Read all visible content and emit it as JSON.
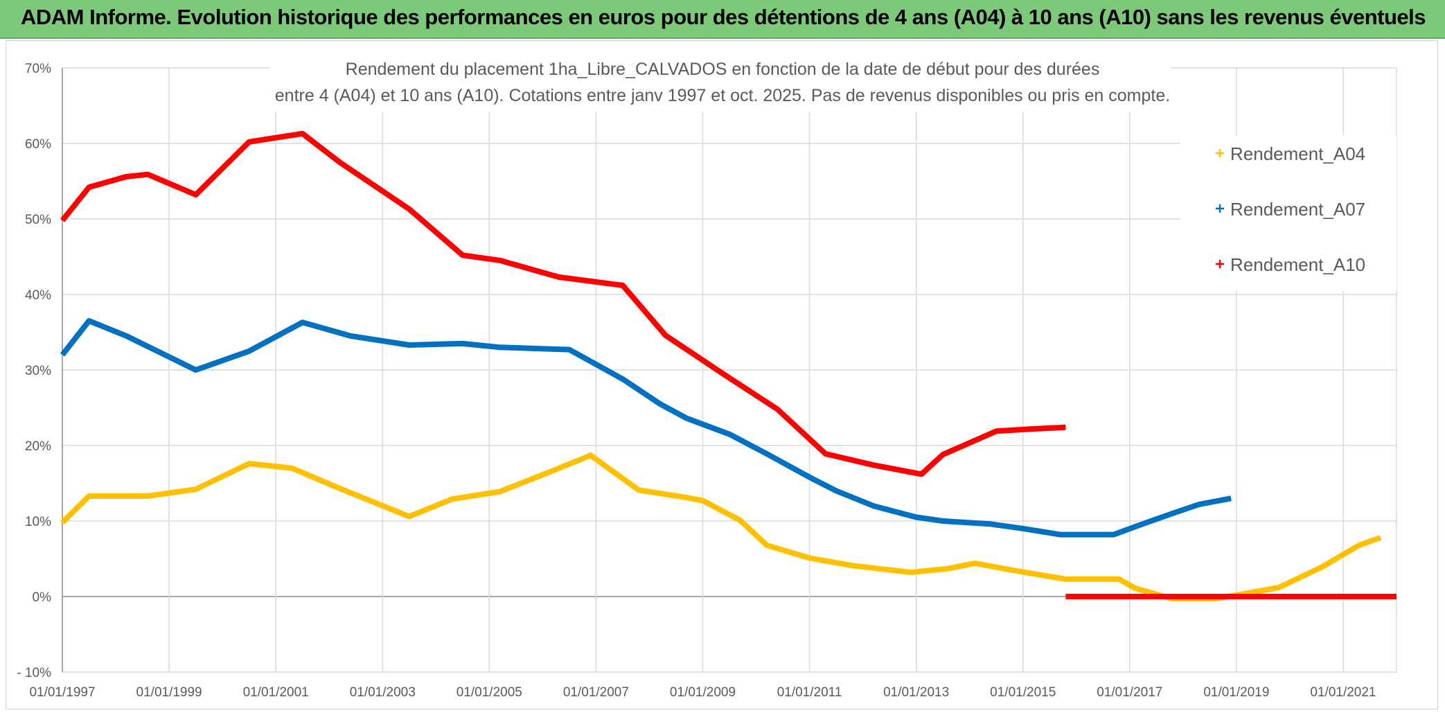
{
  "header": {
    "title": "ADAM Informe. Evolution historique des performances en euros pour des détentions de 4 ans (A04) à 10 ans (A10) sans les revenus éventuels"
  },
  "colors": {
    "header_bg": "#7dc97a",
    "A04": "#ffc000",
    "A07": "#0070c0",
    "A10": "#ff0000",
    "grid": "#d9d9d9",
    "zero_line": "#a6a6a6",
    "text": "#595959"
  },
  "chart_data": {
    "type": "line",
    "title_lines": [
      "Rendement du placement 1ha_Libre_CALVADOS en fonction de la date de début pour des durées",
      "entre 4 (A04) et 10 ans (A10). Cotations entre janv 1997 et oct. 2025. Pas de revenus disponibles ou pris en compte."
    ],
    "xlabel": "",
    "ylabel": "",
    "x_range": [
      1997.0,
      2022.0
    ],
    "ylim": [
      -10,
      70
    ],
    "y_ticks": [
      -10,
      0,
      10,
      20,
      30,
      40,
      50,
      60,
      70
    ],
    "y_tick_labels": [
      "- 10%",
      "0%",
      "10%",
      "20%",
      "30%",
      "40%",
      "50%",
      "60%",
      "70%"
    ],
    "x_ticks": [
      1997,
      1999,
      2001,
      2003,
      2005,
      2007,
      2009,
      2011,
      2013,
      2015,
      2017,
      2019,
      2021
    ],
    "x_tick_labels": [
      "01/01/1997",
      "01/01/1999",
      "01/01/2001",
      "01/01/2003",
      "01/01/2005",
      "01/01/2007",
      "01/01/2009",
      "01/01/2011",
      "01/01/2013",
      "01/01/2015",
      "01/01/2017",
      "01/01/2019",
      "01/01/2021"
    ],
    "grid": true,
    "legend_position": "top-right",
    "series": [
      {
        "name": "Rendement_A04",
        "color_key": "A04",
        "x": [
          1997.0,
          1997.5,
          1998.1,
          1998.6,
          1999.5,
          2000.5,
          2001.3,
          2002.2,
          2003.5,
          2004.3,
          2005.2,
          2006.1,
          2006.9,
          2007.8,
          2008.7,
          2009.0,
          2009.7,
          2010.2,
          2011.0,
          2011.8,
          2012.9,
          2013.6,
          2014.1,
          2014.8,
          2015.8,
          2016.8,
          2017.1,
          2017.8,
          2018.6,
          2019.1,
          2019.8,
          2020.6,
          2021.3,
          2021.7
        ],
        "values": [
          9.8,
          13.3,
          13.3,
          13.3,
          14.2,
          17.6,
          17.0,
          14.3,
          10.6,
          12.9,
          13.9,
          16.4,
          18.7,
          14.1,
          13.1,
          12.7,
          10.1,
          6.8,
          5.1,
          4.1,
          3.2,
          3.7,
          4.4,
          3.5,
          2.3,
          2.3,
          1.1,
          -0.3,
          -0.3,
          0.3,
          1.2,
          3.9,
          6.8,
          7.8
        ]
      },
      {
        "name": "Rendement_A07",
        "color_key": "A07",
        "x": [
          1997.0,
          1997.5,
          1998.2,
          1999.5,
          2000.5,
          2001.5,
          2002.4,
          2003.5,
          2004.5,
          2005.2,
          2006.5,
          2007.5,
          2008.2,
          2008.7,
          2009.5,
          2010.2,
          2011.0,
          2011.5,
          2012.2,
          2013.0,
          2013.5,
          2014.4,
          2015.0,
          2015.7,
          2016.7,
          2017.2,
          2017.8,
          2018.3,
          2018.9
        ],
        "values": [
          32.0,
          36.5,
          34.5,
          30.0,
          32.5,
          36.3,
          34.5,
          33.3,
          33.5,
          33.0,
          32.7,
          28.8,
          25.5,
          23.6,
          21.5,
          18.9,
          15.8,
          14.0,
          12.0,
          10.5,
          10.0,
          9.6,
          9.0,
          8.2,
          8.2,
          9.5,
          11.0,
          12.2,
          13.0
        ]
      },
      {
        "name": "Rendement_A10",
        "color_key": "A10",
        "x": [
          1997.0,
          1997.5,
          1998.2,
          1998.6,
          1999.5,
          2000.5,
          2001.5,
          2002.2,
          2003.5,
          2004.5,
          2005.2,
          2006.3,
          2007.5,
          2008.3,
          2009.4,
          2010.4,
          2011.3,
          2012.2,
          2013.1,
          2013.5,
          2014.5,
          2015.2,
          2015.8
        ],
        "values": [
          49.8,
          54.2,
          55.6,
          55.9,
          53.2,
          60.2,
          61.3,
          57.5,
          51.3,
          45.2,
          44.5,
          42.3,
          41.2,
          34.6,
          29.4,
          24.8,
          18.9,
          17.4,
          16.2,
          18.8,
          21.9,
          22.2,
          22.4
        ]
      },
      {
        "name": "Rendement_A10",
        "color_key": "A10",
        "legend": false,
        "x": [
          2015.8,
          2022.0
        ],
        "values": [
          0.0,
          0.0
        ]
      }
    ]
  }
}
